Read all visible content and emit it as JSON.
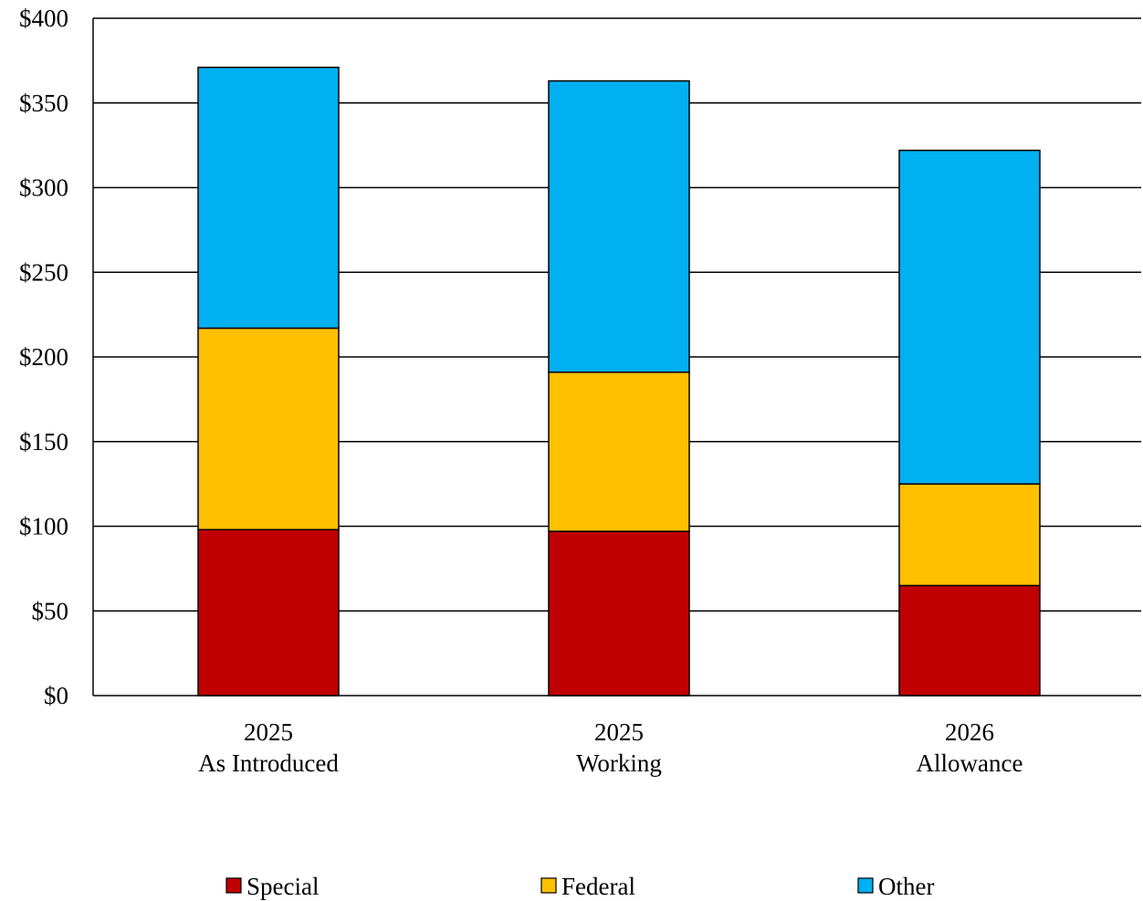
{
  "chart_data": {
    "type": "bar",
    "stacked": true,
    "categories": [
      {
        "line1": "2025",
        "line2": "As Introduced"
      },
      {
        "line1": "2025",
        "line2": "Working"
      },
      {
        "line1": "2026",
        "line2": "Allowance"
      }
    ],
    "series": [
      {
        "name": "Special",
        "color": "#C00000",
        "values": [
          98,
          97,
          65
        ]
      },
      {
        "name": "Federal",
        "color": "#FFC000",
        "values": [
          119,
          94,
          60
        ]
      },
      {
        "name": "Other",
        "color": "#00B0F0",
        "values": [
          154,
          172,
          197
        ]
      }
    ],
    "ylim": [
      0,
      400
    ],
    "y_ticks": [
      0,
      50,
      100,
      150,
      200,
      250,
      300,
      350,
      400
    ],
    "y_tick_labels": [
      "$0",
      "$50",
      "$100",
      "$150",
      "$200",
      "$250",
      "$300",
      "$350",
      "$400"
    ],
    "grid": true,
    "legend_position": "bottom"
  }
}
